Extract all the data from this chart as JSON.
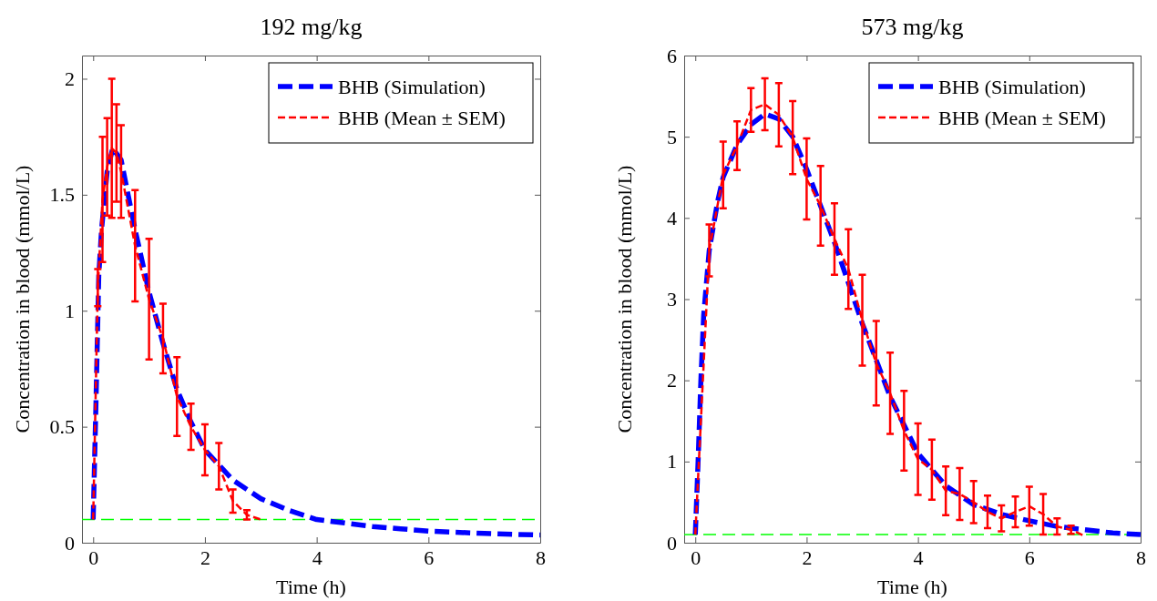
{
  "chart_data": [
    {
      "type": "line",
      "title": "192 mg/kg",
      "xlabel": "Time (h)",
      "ylabel": "Concentration in blood (mmol/L)",
      "xlim": [
        -0.2,
        8
      ],
      "ylim": [
        0,
        2.1
      ],
      "xticks": [
        0,
        2,
        4,
        6,
        8
      ],
      "yticks": [
        0,
        0.5,
        1,
        1.5,
        2
      ],
      "legend": "top right",
      "grid": false,
      "marker": "none",
      "ref_lines": [
        {
          "axis": "y",
          "value": 0.1,
          "color": "#00ff00",
          "line_style": "dashed"
        }
      ],
      "series": [
        {
          "name": "BHB (Simulation)",
          "color": "#0000ff",
          "line_style": "dashed",
          "x": [
            0,
            0.05,
            0.1,
            0.15,
            0.25,
            0.35,
            0.5,
            0.75,
            1,
            1.25,
            1.5,
            1.75,
            2,
            2.5,
            3,
            3.5,
            4,
            4.5,
            5,
            5.5,
            6,
            7,
            8
          ],
          "values": [
            0.1,
            0.6,
            1.15,
            1.35,
            1.6,
            1.7,
            1.65,
            1.35,
            1.08,
            0.86,
            0.66,
            0.52,
            0.4,
            0.27,
            0.19,
            0.14,
            0.1,
            0.085,
            0.07,
            0.06,
            0.05,
            0.04,
            0.033
          ]
        },
        {
          "name": "BHB (Mean ± SEM)",
          "color": "#ff0000",
          "line_style": "dashed",
          "x": [
            0,
            0.083,
            0.167,
            0.25,
            0.333,
            0.417,
            0.5,
            0.75,
            1,
            1.25,
            1.5,
            1.75,
            2,
            2.25,
            2.5,
            2.75,
            3
          ],
          "values": [
            0.1,
            1.1,
            1.48,
            1.62,
            1.7,
            1.68,
            1.6,
            1.28,
            1.05,
            0.88,
            0.63,
            0.5,
            0.4,
            0.33,
            0.18,
            0.12,
            0.1
          ],
          "errors": [
            null,
            0.08,
            0.27,
            0.21,
            0.3,
            0.21,
            0.2,
            0.24,
            0.26,
            0.15,
            0.17,
            0.1,
            0.11,
            0.1,
            0.05,
            0.02,
            null
          ]
        }
      ]
    },
    {
      "type": "line",
      "title": "573 mg/kg",
      "xlabel": "Time (h)",
      "ylabel": "Concentration in blood (mmol/L)",
      "xlim": [
        -0.2,
        8
      ],
      "ylim": [
        0,
        6
      ],
      "xticks": [
        0,
        2,
        4,
        6,
        8
      ],
      "yticks": [
        0,
        1,
        2,
        3,
        4,
        5,
        6
      ],
      "legend": "top right",
      "grid": false,
      "marker": "none",
      "ref_lines": [
        {
          "axis": "y",
          "value": 0.1,
          "color": "#00ff00",
          "line_style": "dashed"
        }
      ],
      "series": [
        {
          "name": "BHB (Simulation)",
          "color": "#0000ff",
          "line_style": "dashed",
          "x": [
            0,
            0.05,
            0.1,
            0.15,
            0.25,
            0.4,
            0.5,
            0.75,
            1,
            1.25,
            1.5,
            1.75,
            2,
            2.25,
            2.5,
            2.75,
            3,
            3.25,
            3.5,
            3.75,
            4,
            4.5,
            5,
            5.5,
            6,
            6.5,
            7,
            7.5,
            8
          ],
          "values": [
            0.1,
            1.0,
            2.0,
            2.8,
            3.6,
            4.2,
            4.5,
            4.9,
            5.15,
            5.28,
            5.22,
            5.0,
            4.6,
            4.15,
            3.7,
            3.2,
            2.7,
            2.25,
            1.8,
            1.45,
            1.1,
            0.7,
            0.47,
            0.35,
            0.27,
            0.2,
            0.16,
            0.12,
            0.1
          ]
        },
        {
          "name": "BHB (Mean ± SEM)",
          "color": "#ff0000",
          "line_style": "dashed",
          "x": [
            0,
            0.25,
            0.5,
            0.75,
            1,
            1.25,
            1.5,
            1.75,
            2,
            2.25,
            2.5,
            2.75,
            3,
            3.25,
            3.5,
            3.75,
            4,
            4.25,
            4.5,
            4.75,
            5,
            5.25,
            5.5,
            5.75,
            6,
            6.25,
            6.5,
            6.75,
            7
          ],
          "values": [
            0.1,
            3.6,
            4.53,
            4.89,
            5.33,
            5.4,
            5.27,
            4.99,
            4.48,
            4.15,
            3.74,
            3.37,
            2.74,
            2.21,
            1.84,
            1.38,
            1.03,
            0.9,
            0.64,
            0.6,
            0.5,
            0.38,
            0.3,
            0.38,
            0.45,
            0.35,
            0.2,
            0.16,
            0.08
          ],
          "errors": [
            null,
            0.32,
            0.41,
            0.3,
            0.27,
            0.32,
            0.39,
            0.45,
            0.5,
            0.49,
            0.44,
            0.49,
            0.56,
            0.52,
            0.5,
            0.49,
            0.44,
            0.37,
            0.3,
            0.32,
            0.26,
            0.2,
            0.16,
            0.19,
            0.24,
            0.25,
            0.1,
            0.05,
            null
          ]
        }
      ]
    }
  ]
}
